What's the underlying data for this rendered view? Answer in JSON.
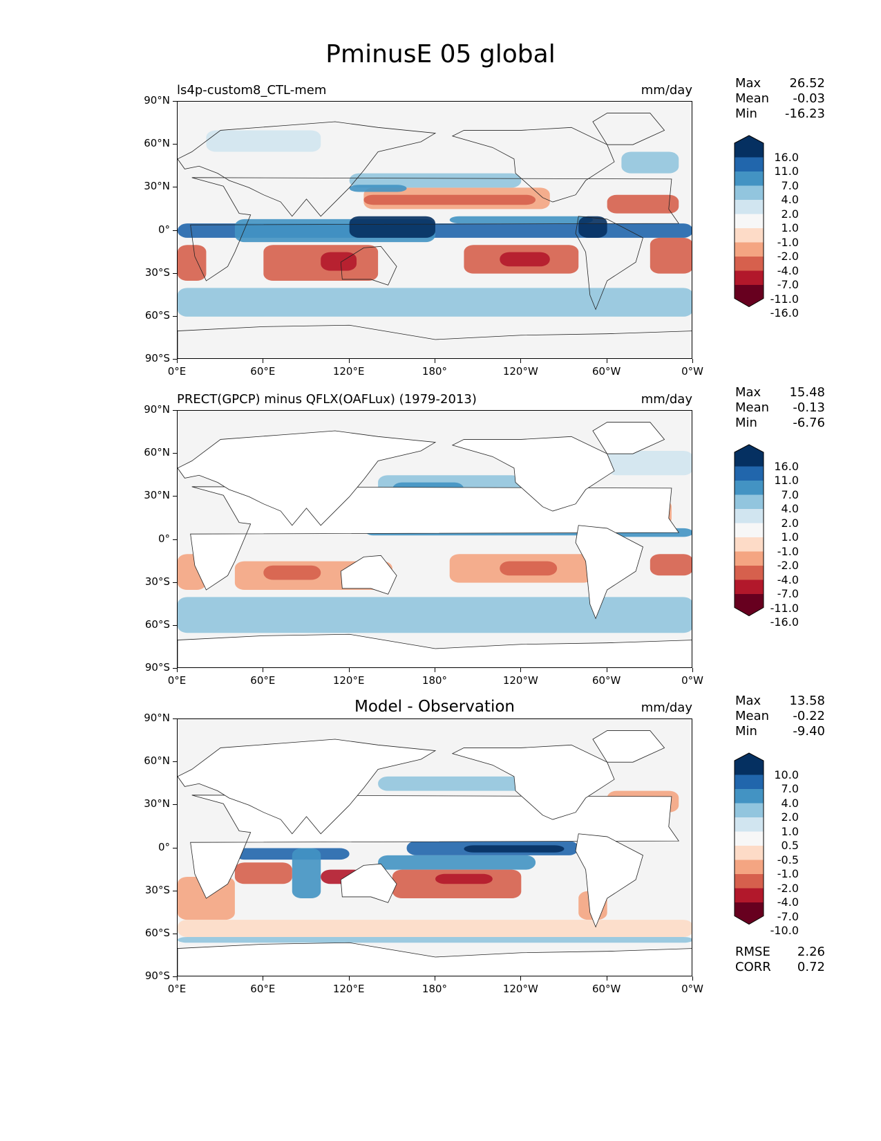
{
  "figure_title": "PminusE 05 global",
  "panels": [
    {
      "title_left": "ls4p-custom8_CTL-mem",
      "title_center": "",
      "units": "mm/day",
      "stats": {
        "max_label": "Max",
        "max": "26.52",
        "mean_label": "Mean",
        "mean": "-0.03",
        "min_label": "Min",
        "min": "-16.23"
      },
      "colorbar_labels": [
        "16.0",
        "11.0",
        "7.0",
        "4.0",
        "2.0",
        "1.0",
        "-1.0",
        "-2.0",
        "-4.0",
        "-7.0",
        "-11.0",
        "-16.0"
      ]
    },
    {
      "title_left": "PRECT(GPCP) minus QFLX(OAFLux) (1979-2013)",
      "title_center": "",
      "units": "mm/day",
      "stats": {
        "max_label": "Max",
        "max": "15.48",
        "mean_label": "Mean",
        "mean": "-0.13",
        "min_label": "Min",
        "min": "-6.76"
      },
      "colorbar_labels": [
        "16.0",
        "11.0",
        "7.0",
        "4.0",
        "2.0",
        "1.0",
        "-1.0",
        "-2.0",
        "-4.0",
        "-7.0",
        "-11.0",
        "-16.0"
      ]
    },
    {
      "title_left": "",
      "title_center": "Model - Observation",
      "units": "mm/day",
      "stats": {
        "max_label": "Max",
        "max": "13.58",
        "mean_label": "Mean",
        "mean": "-0.22",
        "min_label": "Min",
        "min": "-9.40"
      },
      "colorbar_labels": [
        "10.0",
        "7.0",
        "4.0",
        "2.0",
        "1.0",
        "0.5",
        "-0.5",
        "-1.0",
        "-2.0",
        "-4.0",
        "-7.0",
        "-10.0"
      ],
      "rmse_label": "RMSE",
      "rmse": "2.26",
      "corr_label": "CORR",
      "corr": "0.72"
    }
  ],
  "axes": {
    "lat_ticks": [
      "90°N",
      "60°N",
      "30°N",
      "0°",
      "30°S",
      "60°S",
      "90°S"
    ],
    "lon_ticks": [
      "0°E",
      "60°E",
      "120°E",
      "180°",
      "120°W",
      "60°W",
      "0°W"
    ]
  },
  "colors": {
    "cbar": [
      "#053061",
      "#2166ac",
      "#4393c3",
      "#92c5de",
      "#d1e5f0",
      "#f7f7f7",
      "#fddbc7",
      "#f4a582",
      "#d6604d",
      "#b2182b",
      "#67001f"
    ]
  }
}
